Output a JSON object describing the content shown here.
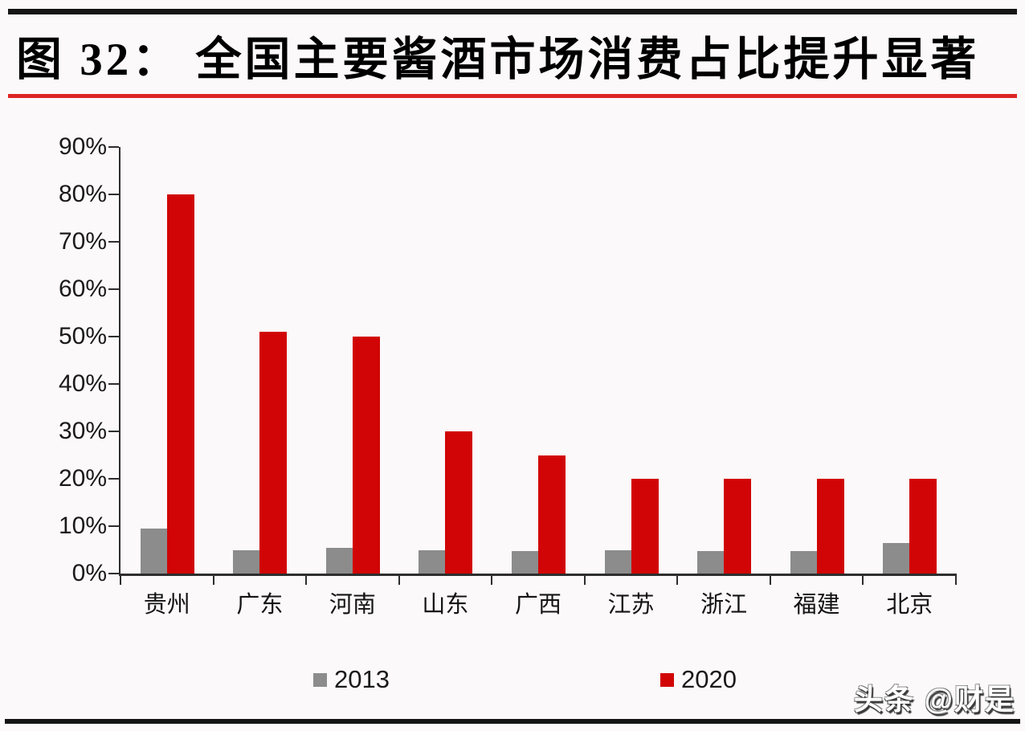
{
  "page": {
    "title": "图 32： 全国主要酱酒市场消费占比提升显著",
    "watermark": "头条 @财是"
  },
  "chart_data": {
    "type": "bar",
    "title": "全国主要酱酒市场消费占比提升显著",
    "figure_label": "图 32",
    "categories": [
      "贵州",
      "广东",
      "河南",
      "山东",
      "广西",
      "江苏",
      "浙江",
      "福建",
      "北京"
    ],
    "series": [
      {
        "name": "2013",
        "color": "#8c8c8c",
        "values": [
          9.5,
          5.0,
          5.5,
          5.0,
          4.8,
          5.0,
          4.7,
          4.7,
          6.5
        ]
      },
      {
        "name": "2020",
        "color": "#d10505",
        "values": [
          80,
          51,
          50,
          30,
          25,
          20,
          20,
          20,
          20
        ]
      }
    ],
    "xlabel": "",
    "ylabel": "",
    "ylim": [
      0,
      90
    ],
    "ytick_step": 10,
    "ytick_labels": [
      "0%",
      "10%",
      "20%",
      "30%",
      "40%",
      "50%",
      "60%",
      "70%",
      "80%",
      "90%"
    ],
    "grid": false,
    "legend_position": "bottom"
  },
  "colors": {
    "background": "#fbf9f9",
    "bar_2013": "#8c8c8c",
    "bar_2020": "#d10505",
    "title_rule_red": "#dd2424",
    "frame_rule_black": "#141414",
    "axis": "#2e2e2e"
  }
}
